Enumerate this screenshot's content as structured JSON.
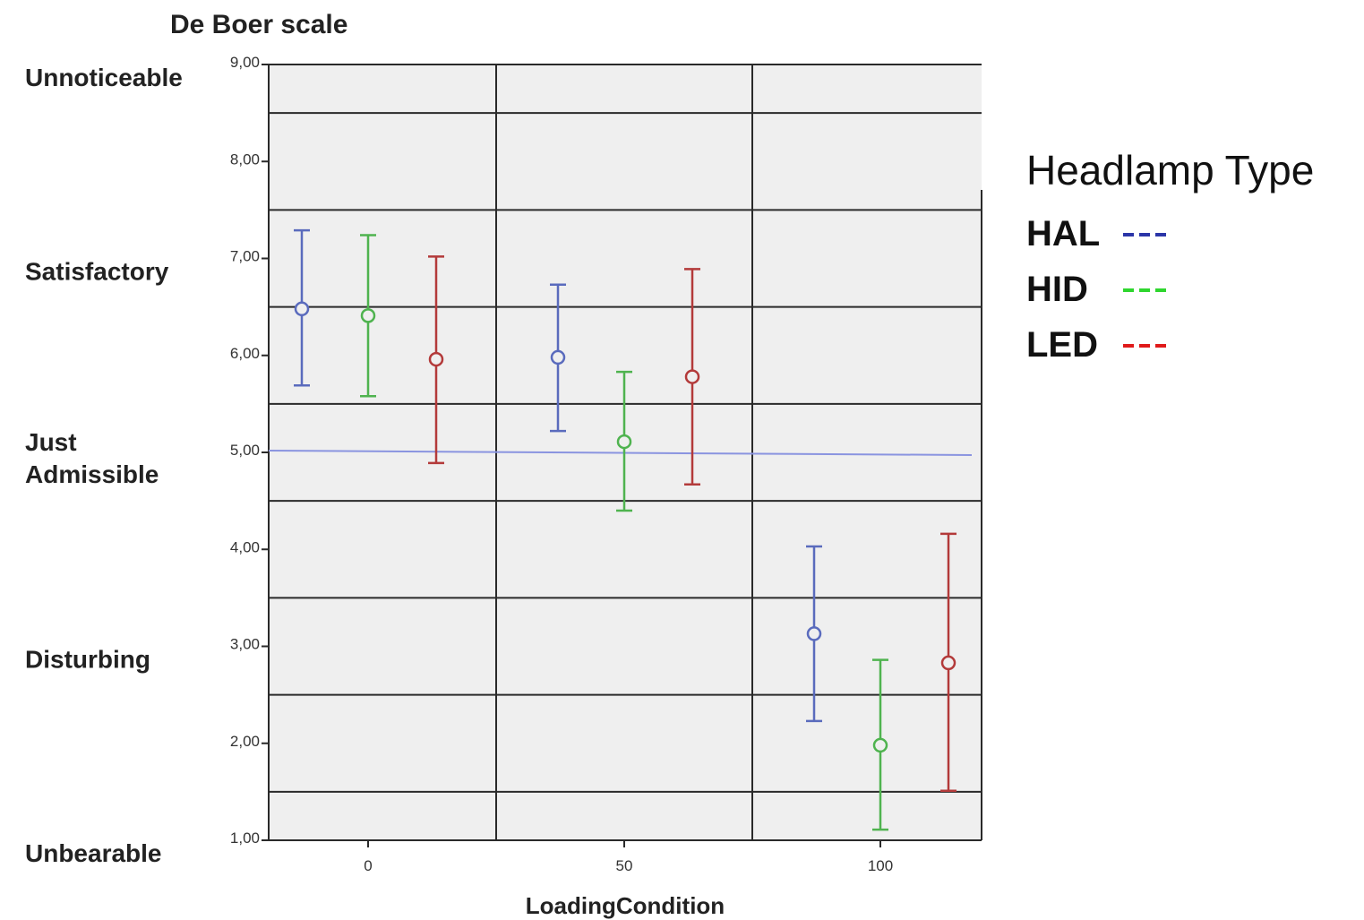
{
  "chart_data": {
    "type": "scatter",
    "title": "De Boer scale",
    "xlabel": "LoadingCondition",
    "ylabel": "",
    "ylim": [
      1,
      9
    ],
    "y_ticks": [
      1,
      2,
      3,
      4,
      5,
      6,
      7,
      8,
      9
    ],
    "y_tick_labels": [
      "1,00",
      "2,00",
      "3,00",
      "4,00",
      "5,00",
      "6,00",
      "7,00",
      "8,00",
      "9,00"
    ],
    "x_ticks": [
      0,
      50,
      100
    ],
    "x_tick_labels": [
      "0",
      "50",
      "100"
    ],
    "scale_labels": [
      {
        "text": "Unnoticeable",
        "y": 9
      },
      {
        "text": "Satisfactory",
        "y": 7
      },
      {
        "text": "Just Admissible",
        "y": 5
      },
      {
        "text": "Disturbing",
        "y": 3
      },
      {
        "text": "Unbearable",
        "y": 1
      }
    ],
    "grid": true,
    "legend": {
      "title": "Headlamp Type",
      "placement": "right",
      "entries": [
        {
          "label": "HAL",
          "color": "#2b35a8"
        },
        {
          "label": "HID",
          "color": "#2fd62f"
        },
        {
          "label": "LED",
          "color": "#e01a1a"
        }
      ]
    },
    "series": [
      {
        "name": "HAL",
        "color": "#5a6bbd",
        "points": [
          {
            "x": 0,
            "mean": 6.48,
            "lower": 5.69,
            "upper": 7.29
          },
          {
            "x": 50,
            "mean": 5.98,
            "lower": 5.22,
            "upper": 6.73
          },
          {
            "x": 100,
            "mean": 3.13,
            "lower": 2.23,
            "upper": 4.03
          }
        ]
      },
      {
        "name": "HID",
        "color": "#4fb34f",
        "points": [
          {
            "x": 0,
            "mean": 6.41,
            "lower": 5.58,
            "upper": 7.24
          },
          {
            "x": 50,
            "mean": 5.11,
            "lower": 4.4,
            "upper": 5.83
          },
          {
            "x": 100,
            "mean": 1.98,
            "lower": 1.11,
            "upper": 2.86
          }
        ]
      },
      {
        "name": "LED",
        "color": "#b33a3a",
        "points": [
          {
            "x": 0,
            "mean": 5.96,
            "lower": 4.89,
            "upper": 7.02
          },
          {
            "x": 50,
            "mean": 5.78,
            "lower": 4.67,
            "upper": 6.89
          },
          {
            "x": 100,
            "mean": 2.83,
            "lower": 1.51,
            "upper": 4.16
          }
        ]
      }
    ],
    "reference_line": {
      "y": 5,
      "color": "#8a94e0"
    }
  }
}
